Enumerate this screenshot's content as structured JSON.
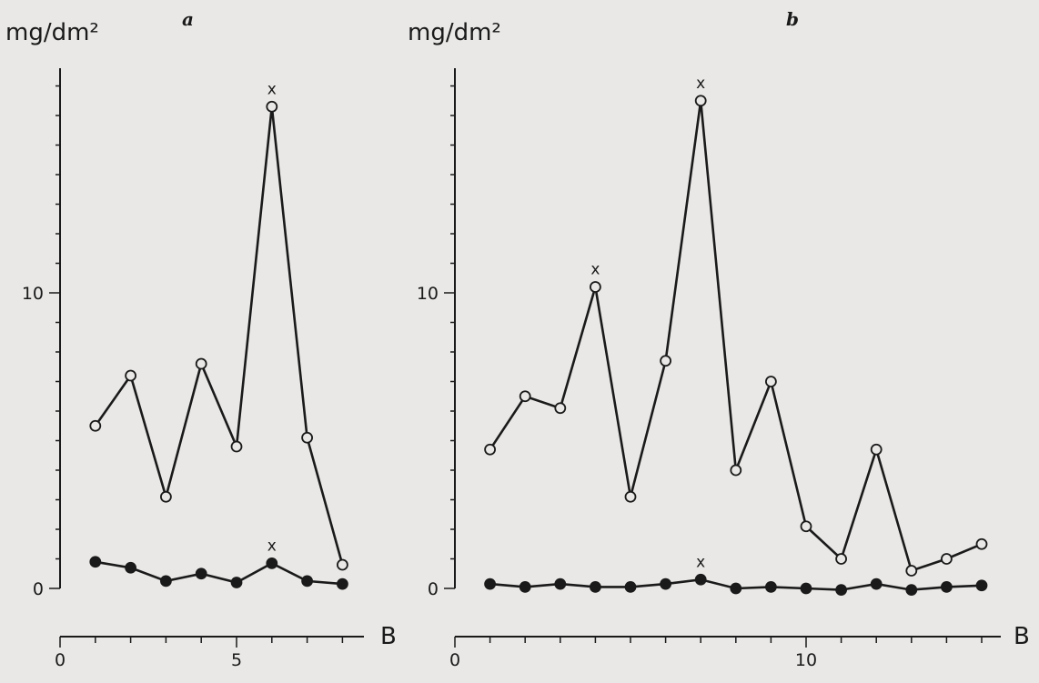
{
  "chart_data": [
    {
      "type": "line",
      "panel_label": "a",
      "ylabel": "mg/dm²",
      "xlabel": "B",
      "ylim": [
        0,
        17.5
      ],
      "xlim": [
        0,
        8
      ],
      "x_ticks": [
        0,
        5
      ],
      "y_ticks": [
        0,
        10
      ],
      "series": [
        {
          "marker": "open-circle",
          "x": [
            1,
            2,
            3,
            4,
            5,
            6,
            7,
            8
          ],
          "y": [
            5.5,
            7.2,
            3.1,
            7.6,
            4.8,
            16.3,
            5.1,
            0.8
          ]
        },
        {
          "marker": "filled-circle",
          "x": [
            1,
            2,
            3,
            4,
            5,
            6,
            7,
            8
          ],
          "y": [
            0.9,
            0.7,
            0.25,
            0.5,
            0.2,
            0.85,
            0.25,
            0.15
          ]
        }
      ],
      "annotations": [
        {
          "text": "x",
          "x": 6,
          "series": 0
        },
        {
          "text": "x",
          "x": 6,
          "series": 1
        }
      ]
    },
    {
      "type": "line",
      "panel_label": "b",
      "ylabel": "mg/dm²",
      "xlabel": "B",
      "ylim": [
        0,
        17.5
      ],
      "xlim": [
        0,
        15.5
      ],
      "x_ticks": [
        0,
        10
      ],
      "y_ticks": [
        0,
        10
      ],
      "series": [
        {
          "marker": "open-circle",
          "x": [
            1,
            2,
            3,
            4,
            5,
            6,
            7,
            8,
            9,
            10,
            11,
            12,
            13,
            14,
            15
          ],
          "y": [
            4.7,
            6.5,
            6.1,
            10.2,
            3.1,
            7.7,
            16.5,
            4.0,
            7.0,
            2.1,
            1.0,
            4.7,
            0.6,
            1.0,
            1.5
          ]
        },
        {
          "marker": "filled-circle",
          "x": [
            1,
            2,
            3,
            4,
            5,
            6,
            7,
            8,
            9,
            10,
            11,
            12,
            13,
            14,
            15
          ],
          "y": [
            0.15,
            0.05,
            0.15,
            0.05,
            0.05,
            0.15,
            0.3,
            0.0,
            0.05,
            0.0,
            -0.05,
            0.15,
            -0.05,
            0.05,
            0.1
          ]
        }
      ],
      "annotations": [
        {
          "text": "x",
          "x": 4,
          "series": 0
        },
        {
          "text": "x",
          "x": 7,
          "series": 0
        },
        {
          "text": "x",
          "x": 7,
          "series": 1
        }
      ]
    }
  ],
  "colors": {
    "ink": "#1a1a1a",
    "paper": "#e9e8e6"
  }
}
